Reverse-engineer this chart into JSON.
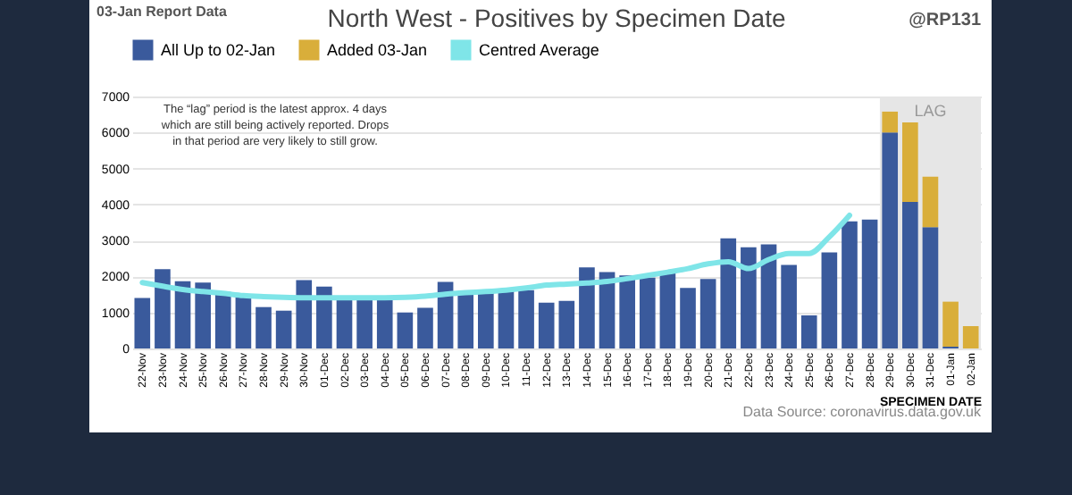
{
  "chart_data": {
    "type": "bar",
    "title": "North West - Positives by Specimen Date",
    "xlabel": "SPECIMEN DATE",
    "categories": [
      "22-Nov",
      "23-Nov",
      "24-Nov",
      "25-Nov",
      "26-Nov",
      "27-Nov",
      "28-Nov",
      "29-Nov",
      "30-Nov",
      "01-Dec",
      "02-Dec",
      "03-Dec",
      "04-Dec",
      "05-Dec",
      "06-Dec",
      "07-Dec",
      "08-Dec",
      "09-Dec",
      "10-Dec",
      "11-Dec",
      "12-Dec",
      "13-Dec",
      "14-Dec",
      "15-Dec",
      "16-Dec",
      "17-Dec",
      "18-Dec",
      "19-Dec",
      "20-Dec",
      "21-Dec",
      "22-Dec",
      "23-Dec",
      "24-Dec",
      "25-Dec",
      "26-Dec",
      "27-Dec",
      "28-Dec",
      "29-Dec",
      "30-Dec",
      "31-Dec",
      "01-Jan",
      "02-Jan"
    ],
    "stacked": true,
    "series": [
      {
        "name": "All Up to 02-Jan",
        "color": "#3a5a9c",
        "values": [
          1400,
          2200,
          1870,
          1830,
          1570,
          1450,
          1150,
          1050,
          1900,
          1720,
          1400,
          1380,
          1400,
          1000,
          1130,
          1850,
          1580,
          1600,
          1650,
          1620,
          1270,
          1320,
          2250,
          2120,
          2030,
          1970,
          2100,
          1680,
          1930,
          3060,
          2810,
          2890,
          2320,
          920,
          2670,
          3530,
          3580,
          6000,
          4070,
          3370,
          50,
          0
        ]
      },
      {
        "name": "Added 03-Jan",
        "color": "#d9ae3a",
        "values": [
          0,
          0,
          0,
          0,
          0,
          0,
          0,
          0,
          0,
          0,
          0,
          0,
          0,
          0,
          0,
          0,
          0,
          0,
          0,
          0,
          0,
          0,
          0,
          0,
          0,
          0,
          0,
          0,
          0,
          0,
          0,
          0,
          0,
          0,
          0,
          0,
          0,
          580,
          2210,
          1400,
          1250,
          620
        ]
      },
      {
        "name": "Centred Average",
        "type": "line",
        "color": "#7fe5e8",
        "values": [
          1830,
          1730,
          1640,
          1580,
          1530,
          1470,
          1440,
          1420,
          1410,
          1410,
          1410,
          1410,
          1410,
          1420,
          1450,
          1510,
          1550,
          1580,
          1620,
          1680,
          1760,
          1790,
          1820,
          1860,
          1940,
          2030,
          2120,
          2220,
          2350,
          2410,
          2220,
          2470,
          2640,
          2640,
          3100,
          3700,
          null,
          null,
          null,
          null,
          null,
          null
        ]
      }
    ],
    "ylim": [
      0,
      7000
    ],
    "yticks": [
      0,
      1000,
      2000,
      3000,
      4000,
      5000,
      6000,
      7000
    ],
    "grid": "y",
    "legend": "top",
    "marker": "none",
    "line_style": "solid",
    "bands": [
      {
        "axis": "x",
        "from": "29-Dec",
        "to": "02-Jan",
        "label": "LAG",
        "color": "#e6e6e6"
      }
    ],
    "annotations": [
      "03-Jan Report Data",
      "@RP131",
      "The “lag” period is the latest approx. 4 days which are still being actively reported. Drops in that period are very likely to still grow.",
      "Data Source: coronavirus.data.gov.uk"
    ]
  }
}
